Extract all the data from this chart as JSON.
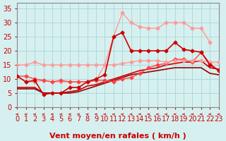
{
  "title": "",
  "xlabel": "Vent moyen/en rafales ( km/h )",
  "ylabel": "",
  "xlim": [
    0,
    23
  ],
  "ylim": [
    0,
    37
  ],
  "xticks": [
    0,
    1,
    2,
    3,
    4,
    5,
    6,
    7,
    8,
    9,
    10,
    11,
    12,
    13,
    14,
    15,
    16,
    17,
    18,
    19,
    20,
    21,
    22,
    23
  ],
  "yticks": [
    0,
    5,
    10,
    15,
    20,
    25,
    30,
    35
  ],
  "bg_color": "#d6f0f0",
  "grid_color": "#b0d8d8",
  "lines": [
    {
      "x": [
        0,
        1,
        2,
        3,
        4,
        5,
        6,
        7,
        8,
        9,
        10,
        11,
        12,
        13,
        14,
        15,
        16,
        17,
        18,
        19,
        20,
        21,
        22,
        23
      ],
      "y": [
        11,
        9,
        9.5,
        4.5,
        5,
        5,
        7,
        7,
        9,
        10,
        11.5,
        25,
        26.5,
        20,
        20,
        20,
        20,
        20,
        23,
        20.5,
        20,
        19.5,
        15,
        13
      ],
      "color": "#cc0000",
      "lw": 1.2,
      "marker": "D",
      "ms": 2.5,
      "zorder": 5
    },
    {
      "x": [
        0,
        1,
        2,
        3,
        4,
        5,
        6,
        7,
        8,
        9,
        10,
        11,
        12,
        13,
        14,
        15,
        16,
        17,
        18,
        19,
        20,
        21,
        22,
        23
      ],
      "y": [
        7,
        7,
        7,
        5,
        5,
        5,
        5.5,
        6,
        7.5,
        8,
        9,
        10,
        11,
        12,
        13,
        13.5,
        14,
        15,
        15.5,
        16,
        16,
        16.5,
        14,
        13.5
      ],
      "color": "#cc0000",
      "lw": 1.2,
      "marker": "",
      "ms": 0,
      "zorder": 3
    },
    {
      "x": [
        0,
        1,
        2,
        3,
        4,
        5,
        6,
        7,
        8,
        9,
        10,
        11,
        12,
        13,
        14,
        15,
        16,
        17,
        18,
        19,
        20,
        21,
        22,
        23
      ],
      "y": [
        6.5,
        6.5,
        6.5,
        5,
        5,
        5,
        5,
        5.5,
        6.5,
        7.5,
        8.5,
        9.5,
        10.5,
        11.5,
        12,
        12.5,
        13,
        13.5,
        14,
        14,
        14,
        14,
        12,
        11.5
      ],
      "color": "#990000",
      "lw": 1.2,
      "marker": "",
      "ms": 0,
      "zorder": 3
    },
    {
      "x": [
        0,
        1,
        2,
        3,
        4,
        5,
        6,
        7,
        8,
        9,
        10,
        11,
        12,
        13,
        14,
        15,
        16,
        17,
        18,
        19,
        20,
        21,
        22,
        23
      ],
      "y": [
        11,
        11,
        10,
        9.5,
        9,
        9.5,
        9,
        9,
        9,
        9.5,
        9.5,
        9,
        10,
        10.5,
        12,
        14,
        15,
        15.5,
        17,
        17,
        16,
        19.5,
        15.5,
        13
      ],
      "color": "#ff4444",
      "lw": 1.0,
      "marker": "D",
      "ms": 2.5,
      "zorder": 4
    },
    {
      "x": [
        0,
        1,
        2,
        3,
        4,
        5,
        6,
        7,
        8,
        9,
        10,
        11,
        12,
        13,
        14,
        15,
        16,
        17,
        18,
        19,
        20,
        21,
        22,
        23
      ],
      "y": [
        15,
        15,
        16,
        15,
        15,
        15,
        15,
        15,
        15,
        15,
        15,
        15,
        15.5,
        16,
        16.5,
        16.5,
        16.5,
        16,
        16.5,
        16.5,
        16.5,
        16.5,
        16,
        16
      ],
      "color": "#ff9999",
      "lw": 1.0,
      "marker": "D",
      "ms": 2.5,
      "zorder": 4
    },
    {
      "x": [
        0,
        1,
        2,
        3,
        4,
        5,
        6,
        7,
        8,
        9,
        10,
        11,
        12,
        13,
        14,
        15,
        16,
        17,
        18,
        19,
        20,
        21,
        22
      ],
      "y": [
        11,
        9,
        9,
        9.5,
        9,
        9,
        9,
        9,
        9,
        9.5,
        15,
        25,
        33.5,
        30,
        28.5,
        28,
        28,
        30,
        30,
        30,
        28,
        28,
        23
      ],
      "color": "#ff9999",
      "lw": 1.0,
      "marker": "D",
      "ms": 2.5,
      "zorder": 2
    }
  ],
  "arrow_color": "#cc0000",
  "tick_color": "#cc0000",
  "spine_color": "#888888",
  "xlabel_color": "#cc0000",
  "xlabel_fontsize": 8,
  "tick_fontsize": 7
}
